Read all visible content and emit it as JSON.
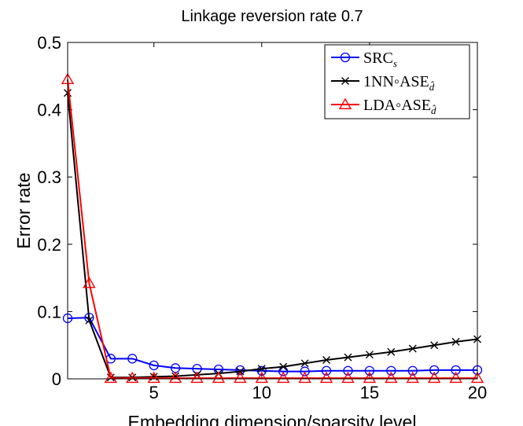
{
  "chart_data": {
    "type": "line",
    "title": "Linkage reversion rate 0.7",
    "xlabel": "Embedding dimension/sparsity level",
    "ylabel": "Error rate",
    "xlim": [
      1,
      20
    ],
    "ylim": [
      0,
      0.5
    ],
    "xticks": [
      5,
      10,
      15,
      20
    ],
    "yticks": [
      0,
      0.1,
      0.2,
      0.3,
      0.4,
      0.5
    ],
    "xtick_labels": [
      "5",
      "10",
      "15",
      "20"
    ],
    "ytick_labels": [
      "0",
      "0.1",
      "0.2",
      "0.3",
      "0.4",
      "0.5"
    ],
    "grid": false,
    "legend_position": "top-right",
    "x": [
      1,
      2,
      3,
      4,
      5,
      6,
      7,
      8,
      9,
      10,
      11,
      12,
      13,
      14,
      15,
      16,
      17,
      18,
      19,
      20
    ],
    "series": [
      {
        "name": "SRC",
        "name_subscript": "s",
        "color": "#0000ff",
        "marker": "circle",
        "values": [
          0.09,
          0.091,
          0.03,
          0.03,
          0.02,
          0.016,
          0.015,
          0.014,
          0.013,
          0.012,
          0.011,
          0.011,
          0.012,
          0.012,
          0.012,
          0.012,
          0.012,
          0.013,
          0.013,
          0.013
        ]
      },
      {
        "name": "1NN◦ASE",
        "name_subscript": "d̂",
        "color": "#000000",
        "marker": "x",
        "values": [
          0.425,
          0.087,
          0.002,
          0.002,
          0.003,
          0.004,
          0.006,
          0.008,
          0.011,
          0.015,
          0.018,
          0.023,
          0.028,
          0.032,
          0.036,
          0.04,
          0.045,
          0.05,
          0.055,
          0.059
        ]
      },
      {
        "name": "LDA◦ASE",
        "name_subscript": "d̂",
        "color": "#ff0000",
        "marker": "triangle",
        "values": [
          0.445,
          0.142,
          0.001,
          0.001,
          0.001,
          0.001,
          0.001,
          0.001,
          0.001,
          0.001,
          0.001,
          0.001,
          0.001,
          0.001,
          0.001,
          0.001,
          0.001,
          0.001,
          0.001,
          0.001
        ]
      }
    ]
  }
}
